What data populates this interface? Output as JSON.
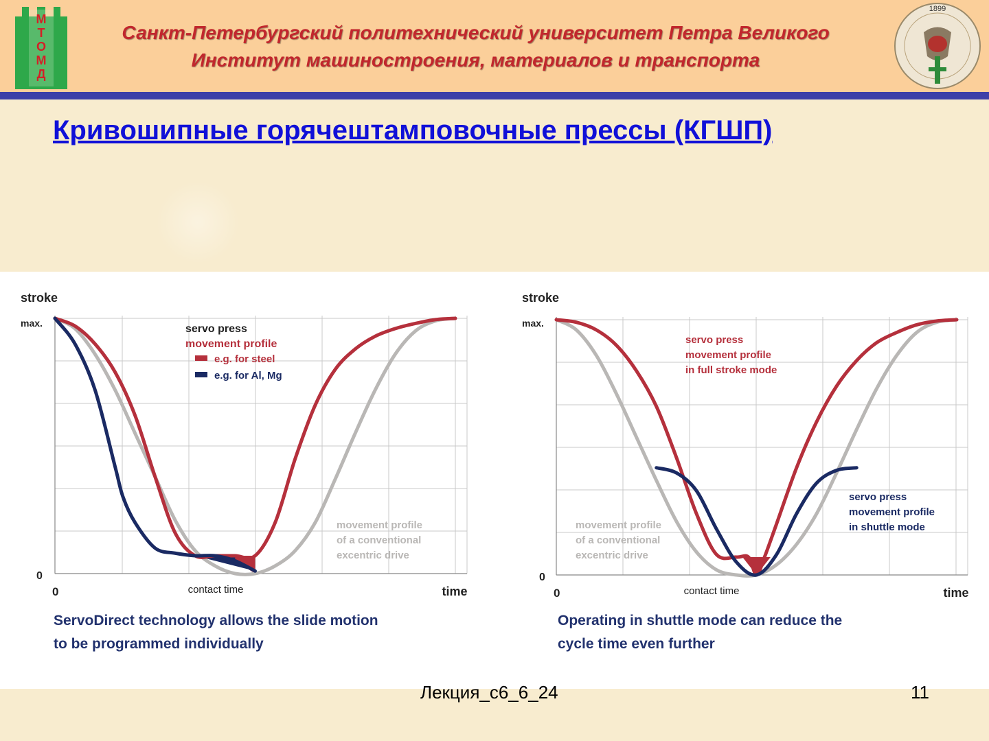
{
  "header": {
    "university": "Санкт-Петербургский политехнический университет Петра Великого",
    "institute": "Институт машиностроения, материалов и транспорта",
    "logo_left_text": "МТОМД",
    "logo_right_year": "1899"
  },
  "title": "Кривошипные горячештамповочные прессы (КГШП)",
  "footer": {
    "lecture": "Лекция_с6_6_24",
    "page": "11"
  },
  "colors": {
    "header_bg": "#fbcf9a",
    "header_line": "#3d3fa8",
    "header_text": "#c1272d",
    "title": "#1010d8",
    "steel": "#b5303c",
    "al_mg": "#1a2a63",
    "conventional": "#b9b7b5",
    "grid": "#c8c8c8",
    "caption": "#22326e"
  },
  "chart_data": [
    {
      "type": "line",
      "ylabel": "stroke",
      "xlabel": "time",
      "y_ticks": [
        "0",
        "max."
      ],
      "x_ticks": [
        "0"
      ],
      "x_annotation": "contact time",
      "ylim": [
        0,
        1
      ],
      "xlim": [
        0,
        1
      ],
      "grid": true,
      "legend": {
        "title": "servo press",
        "subtitle": "movement profile",
        "items": [
          {
            "label": "e.g. for steel",
            "color": "#b5303c"
          },
          {
            "label": "e.g. for Al, Mg",
            "color": "#1a2a63"
          }
        ]
      },
      "annotation_lines": [
        "movement profile",
        "of a conventional",
        "excentric drive"
      ],
      "series": [
        {
          "name": "e.g. for steel",
          "color": "#b5303c",
          "x": [
            0,
            0.05,
            0.1,
            0.15,
            0.2,
            0.25,
            0.3,
            0.35,
            0.4,
            0.45,
            0.5,
            0.55,
            0.6,
            0.65,
            0.7,
            0.75,
            0.8,
            0.85,
            0.9,
            0.95,
            1.0
          ],
          "y": [
            1.0,
            0.97,
            0.9,
            0.79,
            0.62,
            0.38,
            0.16,
            0.07,
            0.07,
            0.07,
            0.07,
            0.2,
            0.45,
            0.66,
            0.8,
            0.88,
            0.93,
            0.96,
            0.98,
            0.995,
            1.0
          ]
        },
        {
          "name": "e.g. for Al, Mg",
          "color": "#1a2a63",
          "x": [
            0,
            0.05,
            0.1,
            0.15,
            0.17,
            0.2,
            0.25,
            0.3,
            0.35,
            0.4,
            0.45,
            0.5
          ],
          "y": [
            1.0,
            0.9,
            0.72,
            0.42,
            0.3,
            0.2,
            0.1,
            0.08,
            0.07,
            0.07,
            0.05,
            0.01
          ]
        },
        {
          "name": "",
          "color": "#b9b7b5",
          "x": [
            0,
            0.05,
            0.1,
            0.15,
            0.2,
            0.25,
            0.3,
            0.35,
            0.4,
            0.45,
            0.5,
            0.55,
            0.6,
            0.65,
            0.7,
            0.75,
            0.8,
            0.85,
            0.9,
            0.95,
            1.0
          ],
          "y": [
            1.0,
            0.96,
            0.86,
            0.72,
            0.55,
            0.38,
            0.21,
            0.09,
            0.03,
            0.0,
            0.0,
            0.03,
            0.09,
            0.2,
            0.37,
            0.55,
            0.72,
            0.86,
            0.95,
            0.99,
            1.0
          ]
        }
      ],
      "caption": [
        "ServoDirect technology allows the slide motion",
        "to be programmed individually"
      ]
    },
    {
      "type": "line",
      "ylabel": "stroke",
      "xlabel": "time",
      "y_ticks": [
        "0",
        "max."
      ],
      "x_ticks": [
        "0"
      ],
      "x_annotation": "contact time",
      "ylim": [
        0,
        1
      ],
      "xlim": [
        0,
        1
      ],
      "grid": true,
      "annotations": [
        {
          "lines": [
            "servo press",
            "movement profile",
            "in full stroke mode"
          ],
          "color": "#b5303c"
        },
        {
          "lines": [
            "servo press",
            "movement profile",
            "in shuttle mode"
          ],
          "color": "#1a2a63"
        },
        {
          "lines": [
            "movement profile",
            "of a conventional",
            "excentric drive"
          ],
          "color": "#b9b7b5"
        }
      ],
      "series": [
        {
          "name": "",
          "color": "#b5303c",
          "x": [
            0,
            0.05,
            0.1,
            0.15,
            0.2,
            0.25,
            0.3,
            0.35,
            0.4,
            0.45,
            0.48,
            0.5,
            0.52,
            0.55,
            0.6,
            0.65,
            0.7,
            0.75,
            0.8,
            0.85,
            0.9,
            0.95,
            1.0
          ],
          "y": [
            1.0,
            0.99,
            0.96,
            0.9,
            0.8,
            0.66,
            0.46,
            0.24,
            0.08,
            0.07,
            0.07,
            0.0,
            0.07,
            0.2,
            0.42,
            0.6,
            0.74,
            0.84,
            0.91,
            0.95,
            0.98,
            0.995,
            1.0
          ]
        },
        {
          "name": "",
          "color": "#1a2a63",
          "x": [
            0.25,
            0.3,
            0.35,
            0.4,
            0.45,
            0.5,
            0.55,
            0.6,
            0.65,
            0.7,
            0.75
          ],
          "y": [
            0.42,
            0.4,
            0.33,
            0.18,
            0.05,
            0.0,
            0.08,
            0.24,
            0.36,
            0.41,
            0.42
          ]
        },
        {
          "name": "",
          "color": "#b9b7b5",
          "x": [
            0,
            0.05,
            0.1,
            0.15,
            0.2,
            0.25,
            0.3,
            0.35,
            0.4,
            0.45,
            0.5,
            0.55,
            0.6,
            0.65,
            0.7,
            0.75,
            0.8,
            0.85,
            0.9,
            0.95,
            1.0
          ],
          "y": [
            1.0,
            0.96,
            0.86,
            0.71,
            0.54,
            0.37,
            0.21,
            0.09,
            0.02,
            0.0,
            0.0,
            0.04,
            0.12,
            0.24,
            0.4,
            0.57,
            0.73,
            0.86,
            0.95,
            0.99,
            1.0
          ]
        }
      ],
      "caption": [
        "Operating in shuttle mode can reduce the",
        "cycle time even further"
      ]
    }
  ]
}
